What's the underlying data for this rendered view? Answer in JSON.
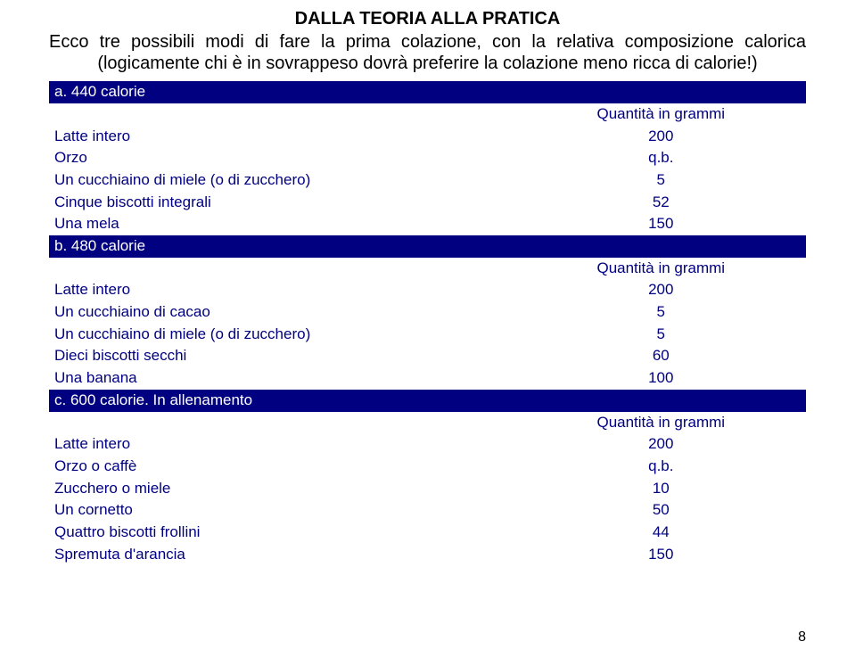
{
  "title": "DALLA TEORIA ALLA PRATICA",
  "subtitle": "Ecco tre possibili modi di fare la prima colazione, con la relativa composizione calorica (logicamente chi è in sovrappeso dovrà preferire la colazione meno ricca di calorie!)",
  "qty_label": "Quantità in grammi",
  "sections": [
    {
      "header": "a. 440 calorie",
      "rows": [
        {
          "item": "Latte intero",
          "value": "200"
        },
        {
          "item": "Orzo",
          "value": "q.b."
        },
        {
          "item": "Un cucchiaino di miele (o di zucchero)",
          "value": "5"
        },
        {
          "item": "Cinque biscotti integrali",
          "value": "52"
        },
        {
          "item": "Una mela",
          "value": "150"
        }
      ]
    },
    {
      "header": "b. 480 calorie",
      "rows": [
        {
          "item": "Latte intero",
          "value": "200"
        },
        {
          "item": "Un cucchiaino di cacao",
          "value": "5"
        },
        {
          "item": "Un cucchiaino di miele (o di zucchero)",
          "value": "5"
        },
        {
          "item": "Dieci biscotti secchi",
          "value": "60"
        },
        {
          "item": "Una banana",
          "value": "100"
        }
      ]
    },
    {
      "header": "c. 600 calorie. In allenamento",
      "rows": [
        {
          "item": "Latte intero",
          "value": "200"
        },
        {
          "item": "Orzo o caffè",
          "value": "q.b."
        },
        {
          "item": "Zucchero o miele",
          "value": "10"
        },
        {
          "item": "Un cornetto",
          "value": "50"
        },
        {
          "item": "Quattro biscotti frollini",
          "value": "44"
        },
        {
          "item": "Spremuta d'arancia",
          "value": "150"
        }
      ]
    }
  ],
  "page_number": "8",
  "colors": {
    "header_bg": "#000080",
    "header_text": "#ffffff",
    "body_text": "#000080",
    "page_bg": "#ffffff",
    "title_text": "#000000"
  },
  "fonts": {
    "title_size_pt": 15,
    "body_size_pt": 13,
    "family": "Verdana"
  }
}
